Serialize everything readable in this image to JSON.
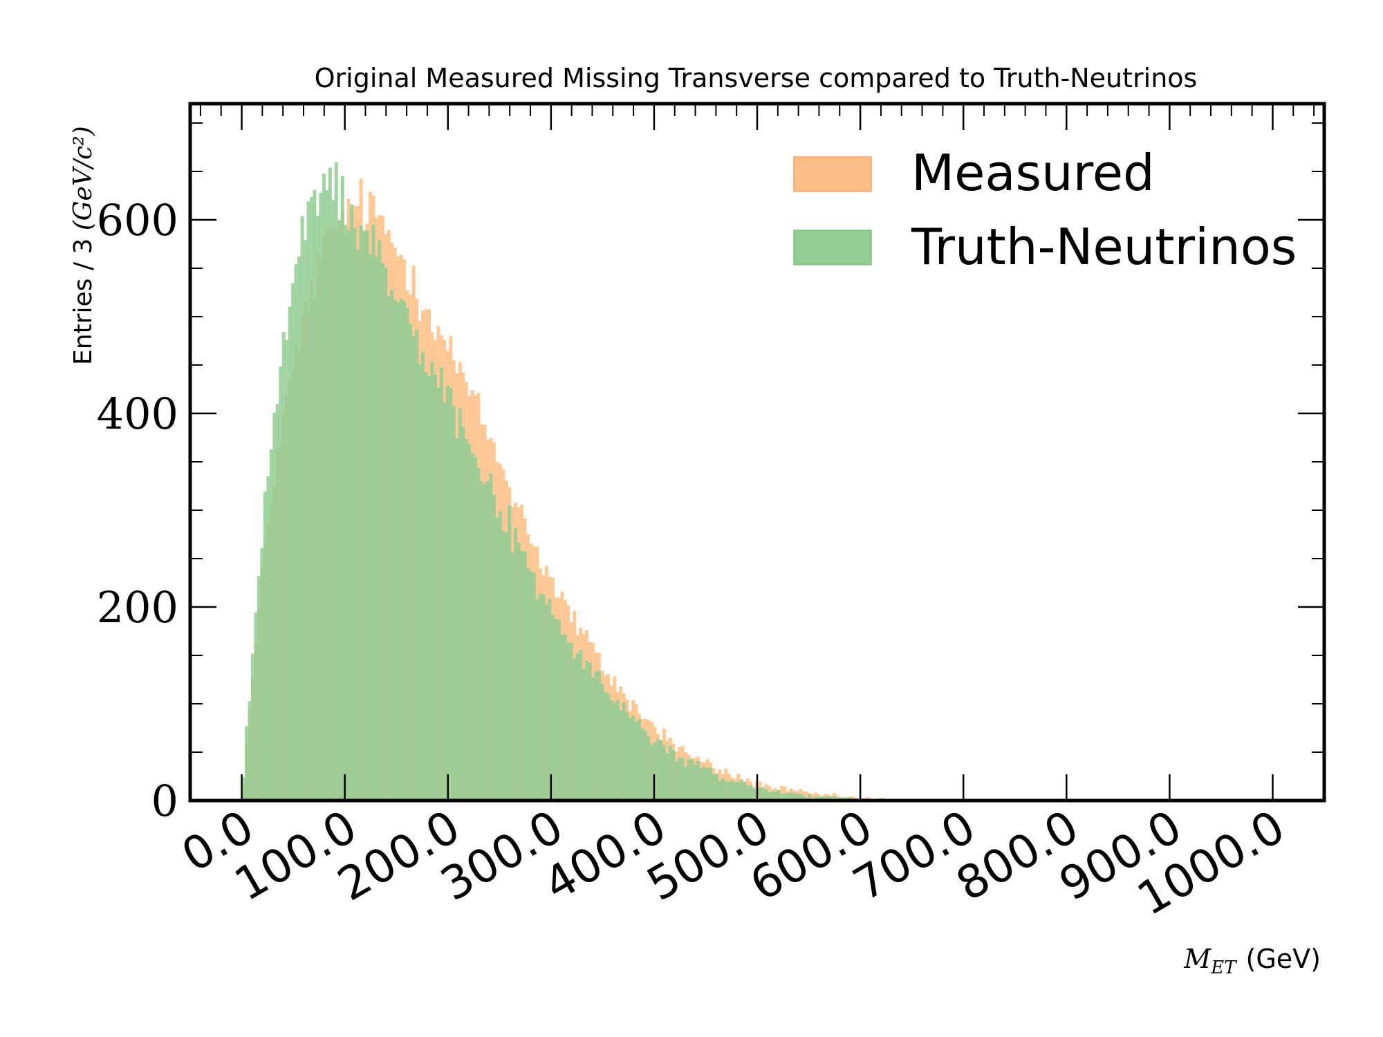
{
  "chart_data": {
    "type": "histogram",
    "title": "Original Measured Missing Transverse compared to Truth-Neutrinos",
    "xlabel_math": "M",
    "xlabel_sub": "ET",
    "xlabel_unit": "(GeV)",
    "ylabel_text": "Entries / 3 ",
    "ylabel_math": "(GeV/c²)",
    "bin_width": 3,
    "xlim": [
      -50,
      1050
    ],
    "ylim": [
      0,
      720
    ],
    "x_ticks": [
      0,
      100,
      200,
      300,
      400,
      500,
      600,
      700,
      800,
      900,
      1000
    ],
    "x_tick_labels": [
      "0.0",
      "100.0",
      "200.0",
      "300.0",
      "400.0",
      "500.0",
      "600.0",
      "700.0",
      "800.0",
      "900.0",
      "1000.0"
    ],
    "y_ticks": [
      0,
      200,
      400,
      600
    ],
    "y_tick_labels": [
      "0",
      "200",
      "400",
      "600"
    ],
    "legend_position": "top-right",
    "series": [
      {
        "name": "Measured",
        "color": "#fdbf86",
        "points": [
          [
            0,
            0
          ],
          [
            3,
            40
          ],
          [
            6,
            75
          ],
          [
            9,
            110
          ],
          [
            12,
            140
          ],
          [
            15,
            175
          ],
          [
            18,
            210
          ],
          [
            21,
            245
          ],
          [
            24,
            280
          ],
          [
            27,
            300
          ],
          [
            30,
            330
          ],
          [
            36,
            365
          ],
          [
            42,
            400
          ],
          [
            48,
            435
          ],
          [
            54,
            465
          ],
          [
            60,
            495
          ],
          [
            66,
            520
          ],
          [
            72,
            545
          ],
          [
            78,
            565
          ],
          [
            84,
            578
          ],
          [
            90,
            590
          ],
          [
            96,
            600
          ],
          [
            102,
            605
          ],
          [
            108,
            610
          ],
          [
            114,
            615
          ],
          [
            120,
            612
          ],
          [
            126,
            608
          ],
          [
            132,
            600
          ],
          [
            138,
            592
          ],
          [
            144,
            582
          ],
          [
            150,
            570
          ],
          [
            156,
            560
          ],
          [
            162,
            548
          ],
          [
            168,
            535
          ],
          [
            174,
            522
          ],
          [
            180,
            510
          ],
          [
            186,
            498
          ],
          [
            192,
            485
          ],
          [
            198,
            472
          ],
          [
            204,
            460
          ],
          [
            210,
            447
          ],
          [
            216,
            432
          ],
          [
            222,
            418
          ],
          [
            228,
            404
          ],
          [
            234,
            390
          ],
          [
            240,
            375
          ],
          [
            246,
            360
          ],
          [
            252,
            345
          ],
          [
            258,
            330
          ],
          [
            264,
            315
          ],
          [
            270,
            300
          ],
          [
            276,
            285
          ],
          [
            282,
            270
          ],
          [
            288,
            255
          ],
          [
            294,
            240
          ],
          [
            300,
            228
          ],
          [
            306,
            216
          ],
          [
            312,
            205
          ],
          [
            318,
            194
          ],
          [
            324,
            183
          ],
          [
            330,
            172
          ],
          [
            336,
            162
          ],
          [
            342,
            152
          ],
          [
            348,
            142
          ],
          [
            354,
            133
          ],
          [
            360,
            124
          ],
          [
            366,
            116
          ],
          [
            372,
            108
          ],
          [
            378,
            100
          ],
          [
            384,
            93
          ],
          [
            390,
            86
          ],
          [
            396,
            80
          ],
          [
            402,
            74
          ],
          [
            408,
            68
          ],
          [
            414,
            63
          ],
          [
            420,
            58
          ],
          [
            426,
            53
          ],
          [
            432,
            49
          ],
          [
            438,
            45
          ],
          [
            444,
            41
          ],
          [
            450,
            38
          ],
          [
            456,
            35
          ],
          [
            462,
            32
          ],
          [
            468,
            29
          ],
          [
            474,
            26
          ],
          [
            480,
            24
          ],
          [
            486,
            22
          ],
          [
            492,
            20
          ],
          [
            498,
            18
          ],
          [
            504,
            16
          ],
          [
            510,
            14.5
          ],
          [
            516,
            13
          ],
          [
            522,
            12
          ],
          [
            528,
            11
          ],
          [
            534,
            10
          ],
          [
            540,
            9
          ],
          [
            546,
            8
          ],
          [
            552,
            7
          ],
          [
            558,
            6.3
          ],
          [
            564,
            5.6
          ],
          [
            570,
            5
          ],
          [
            576,
            4.4
          ],
          [
            582,
            3.9
          ],
          [
            588,
            3.4
          ],
          [
            594,
            3
          ],
          [
            600,
            2.6
          ],
          [
            612,
            2
          ],
          [
            624,
            1.6
          ],
          [
            636,
            1.2
          ],
          [
            648,
            1
          ],
          [
            660,
            0.8
          ],
          [
            672,
            0.6
          ],
          [
            684,
            0.5
          ],
          [
            700,
            0.4
          ],
          [
            720,
            0.3
          ],
          [
            750,
            0.2
          ],
          [
            780,
            0.1
          ],
          [
            820,
            0
          ],
          [
            1050,
            0
          ]
        ]
      },
      {
        "name": "Truth-Neutrinos",
        "color": "#93cd93",
        "points": [
          [
            0,
            0
          ],
          [
            3,
            50
          ],
          [
            6,
            90
          ],
          [
            9,
            130
          ],
          [
            12,
            170
          ],
          [
            15,
            215
          ],
          [
            18,
            255
          ],
          [
            21,
            290
          ],
          [
            24,
            325
          ],
          [
            27,
            355
          ],
          [
            30,
            385
          ],
          [
            36,
            430
          ],
          [
            42,
            475
          ],
          [
            48,
            520
          ],
          [
            54,
            555
          ],
          [
            60,
            585
          ],
          [
            66,
            610
          ],
          [
            72,
            625
          ],
          [
            78,
            632
          ],
          [
            84,
            635
          ],
          [
            90,
            632
          ],
          [
            96,
            625
          ],
          [
            102,
            615
          ],
          [
            108,
            605
          ],
          [
            114,
            595
          ],
          [
            120,
            585
          ],
          [
            126,
            575
          ],
          [
            132,
            564
          ],
          [
            138,
            552
          ],
          [
            144,
            540
          ],
          [
            150,
            528
          ],
          [
            156,
            516
          ],
          [
            162,
            503
          ],
          [
            168,
            490
          ],
          [
            174,
            477
          ],
          [
            180,
            464
          ],
          [
            186,
            451
          ],
          [
            192,
            438
          ],
          [
            198,
            424
          ],
          [
            204,
            410
          ],
          [
            210,
            396
          ],
          [
            216,
            382
          ],
          [
            222,
            368
          ],
          [
            228,
            354
          ],
          [
            234,
            340
          ],
          [
            240,
            326
          ],
          [
            246,
            312
          ],
          [
            252,
            298
          ],
          [
            258,
            284
          ],
          [
            264,
            270
          ],
          [
            270,
            257
          ],
          [
            276,
            244
          ],
          [
            282,
            231
          ],
          [
            288,
            219
          ],
          [
            294,
            207
          ],
          [
            300,
            196
          ],
          [
            306,
            185
          ],
          [
            312,
            175
          ],
          [
            318,
            165
          ],
          [
            324,
            155
          ],
          [
            330,
            146
          ],
          [
            336,
            137
          ],
          [
            342,
            128
          ],
          [
            348,
            120
          ],
          [
            354,
            112
          ],
          [
            360,
            105
          ],
          [
            366,
            98
          ],
          [
            372,
            91
          ],
          [
            378,
            85
          ],
          [
            384,
            79
          ],
          [
            390,
            73
          ],
          [
            396,
            67
          ],
          [
            402,
            62
          ],
          [
            408,
            57
          ],
          [
            414,
            52
          ],
          [
            420,
            48
          ],
          [
            426,
            44
          ],
          [
            432,
            40
          ],
          [
            438,
            37
          ],
          [
            444,
            34
          ],
          [
            450,
            31
          ],
          [
            456,
            28
          ],
          [
            462,
            25
          ],
          [
            468,
            23
          ],
          [
            474,
            21
          ],
          [
            480,
            19
          ],
          [
            486,
            17
          ],
          [
            492,
            15.5
          ],
          [
            498,
            14
          ],
          [
            504,
            12.5
          ],
          [
            510,
            11
          ],
          [
            516,
            10
          ],
          [
            522,
            9
          ],
          [
            528,
            8
          ],
          [
            534,
            7
          ],
          [
            540,
            6.2
          ],
          [
            546,
            5.4
          ],
          [
            552,
            4.8
          ],
          [
            558,
            4.2
          ],
          [
            564,
            3.7
          ],
          [
            570,
            3.2
          ],
          [
            576,
            2.8
          ],
          [
            582,
            2.4
          ],
          [
            588,
            2.1
          ],
          [
            594,
            1.8
          ],
          [
            600,
            1.5
          ],
          [
            612,
            1.1
          ],
          [
            624,
            0.8
          ],
          [
            636,
            0.6
          ],
          [
            648,
            0.4
          ],
          [
            660,
            0.3
          ],
          [
            680,
            0.2
          ],
          [
            700,
            0.1
          ],
          [
            740,
            0
          ],
          [
            1050,
            0
          ]
        ]
      }
    ]
  }
}
